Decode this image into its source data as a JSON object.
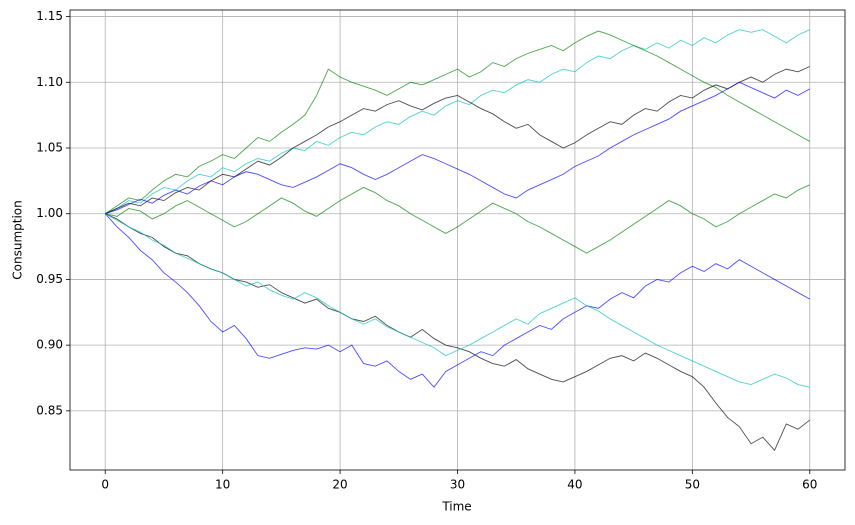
{
  "chart_data": {
    "type": "line",
    "xlabel": "Time",
    "ylabel": "Consumption",
    "xlim": [
      -3,
      63
    ],
    "ylim": [
      0.805,
      1.155
    ],
    "xticks": [
      0,
      10,
      20,
      30,
      40,
      50,
      60
    ],
    "yticks": [
      0.85,
      {
        "value": 0.9,
        "label": "0.90"
      },
      0.95,
      {
        "value": 1.0,
        "label": "1.00"
      },
      1.05,
      {
        "value": 1.1,
        "label": "1.10"
      },
      1.15
    ],
    "grid": true,
    "alpha": 0.7,
    "x": [
      0,
      1,
      2,
      3,
      4,
      5,
      6,
      7,
      8,
      9,
      10,
      11,
      12,
      13,
      14,
      15,
      16,
      17,
      18,
      19,
      20,
      21,
      22,
      23,
      24,
      25,
      26,
      27,
      28,
      29,
      30,
      31,
      32,
      33,
      34,
      35,
      36,
      37,
      38,
      39,
      40,
      41,
      42,
      43,
      44,
      45,
      46,
      47,
      48,
      49,
      50,
      51,
      52,
      53,
      54,
      55,
      56,
      57,
      58,
      59,
      60
    ],
    "series": [
      {
        "color": "#000000",
        "values": [
          1,
          0.996,
          0.99,
          0.985,
          0.982,
          0.975,
          0.97,
          0.968,
          0.962,
          0.958,
          0.955,
          0.95,
          0.948,
          0.944,
          0.946,
          0.94,
          0.936,
          0.932,
          0.935,
          0.928,
          0.925,
          0.92,
          0.918,
          0.922,
          0.915,
          0.91,
          0.906,
          0.912,
          0.905,
          0.9,
          0.898,
          0.895,
          0.89,
          0.886,
          0.884,
          0.889,
          0.882,
          0.878,
          0.874,
          0.872,
          0.876,
          0.88,
          0.885,
          0.89,
          0.892,
          0.888,
          0.894,
          0.89,
          0.885,
          0.88,
          0.876,
          0.868,
          0.856,
          0.845,
          0.838,
          0.825,
          0.83,
          0.82,
          0.84,
          0.836,
          0.843
        ]
      },
      {
        "color": "#00bfbf",
        "values": [
          1,
          1.004,
          1.01,
          1.008,
          1.015,
          1.02,
          1.018,
          1.025,
          1.03,
          1.028,
          1.035,
          1.032,
          1.038,
          1.042,
          1.04,
          1.046,
          1.05,
          1.048,
          1.055,
          1.052,
          1.058,
          1.062,
          1.06,
          1.066,
          1.07,
          1.068,
          1.074,
          1.078,
          1.075,
          1.082,
          1.086,
          1.083,
          1.09,
          1.094,
          1.092,
          1.098,
          1.102,
          1.1,
          1.106,
          1.11,
          1.108,
          1.115,
          1.12,
          1.118,
          1.124,
          1.128,
          1.125,
          1.13,
          1.126,
          1.132,
          1.128,
          1.134,
          1.13,
          1.136,
          1.14,
          1.138,
          1.14,
          1.135,
          1.13,
          1.136,
          1.14
        ]
      },
      {
        "color": "#008000",
        "values": [
          1,
          1.006,
          1.012,
          1.01,
          1.018,
          1.025,
          1.03,
          1.028,
          1.036,
          1.04,
          1.045,
          1.042,
          1.05,
          1.058,
          1.055,
          1.062,
          1.068,
          1.075,
          1.09,
          1.11,
          1.104,
          1.1,
          1.097,
          1.094,
          1.09,
          1.095,
          1.1,
          1.098,
          1.102,
          1.106,
          1.11,
          1.104,
          1.108,
          1.115,
          1.112,
          1.118,
          1.122,
          1.125,
          1.128,
          1.124,
          1.13,
          1.135,
          1.139,
          1.136,
          1.132,
          1.128,
          1.124,
          1.12,
          1.115,
          1.11,
          1.105,
          1.1,
          1.096,
          1.09,
          1.085,
          1.08,
          1.075,
          1.07,
          1.065,
          1.06,
          1.055
        ]
      },
      {
        "color": "#0000ff",
        "values": [
          1,
          0.99,
          0.982,
          0.972,
          0.965,
          0.955,
          0.948,
          0.94,
          0.93,
          0.918,
          0.91,
          0.915,
          0.905,
          0.892,
          0.89,
          0.893,
          0.896,
          0.898,
          0.897,
          0.9,
          0.895,
          0.9,
          0.886,
          0.884,
          0.888,
          0.88,
          0.874,
          0.878,
          0.868,
          0.88,
          0.885,
          0.89,
          0.895,
          0.892,
          0.9,
          0.905,
          0.91,
          0.915,
          0.912,
          0.92,
          0.925,
          0.93,
          0.928,
          0.935,
          0.94,
          0.936,
          0.945,
          0.95,
          0.948,
          0.955,
          0.96,
          0.956,
          0.962,
          0.958,
          0.965,
          0.96,
          0.955,
          0.95,
          0.945,
          0.94,
          0.935
        ]
      },
      {
        "color": "#000000",
        "values": [
          1,
          1.004,
          1.008,
          1.006,
          1.012,
          1.01,
          1.016,
          1.02,
          1.018,
          1.025,
          1.03,
          1.028,
          1.034,
          1.04,
          1.037,
          1.043,
          1.05,
          1.055,
          1.06,
          1.066,
          1.07,
          1.075,
          1.08,
          1.078,
          1.083,
          1.086,
          1.082,
          1.079,
          1.084,
          1.088,
          1.09,
          1.085,
          1.08,
          1.076,
          1.07,
          1.065,
          1.068,
          1.06,
          1.055,
          1.05,
          1.054,
          1.06,
          1.065,
          1.07,
          1.068,
          1.075,
          1.08,
          1.078,
          1.085,
          1.09,
          1.088,
          1.094,
          1.098,
          1.095,
          1.1,
          1.104,
          1.1,
          1.106,
          1.11,
          1.108,
          1.112
        ]
      },
      {
        "color": "#008000",
        "values": [
          1,
          0.998,
          1.004,
          1.002,
          0.996,
          1.0,
          1.006,
          1.01,
          1.005,
          1.0,
          0.995,
          0.99,
          0.994,
          1.0,
          1.006,
          1.012,
          1.008,
          1.002,
          0.998,
          1.004,
          1.01,
          1.015,
          1.02,
          1.016,
          1.01,
          1.006,
          1.0,
          0.995,
          0.99,
          0.985,
          0.99,
          0.996,
          1.002,
          1.008,
          1.004,
          1.0,
          0.994,
          0.99,
          0.985,
          0.98,
          0.975,
          0.97,
          0.975,
          0.98,
          0.986,
          0.992,
          0.998,
          1.004,
          1.01,
          1.006,
          1.0,
          0.996,
          0.99,
          0.994,
          1.0,
          1.005,
          1.01,
          1.015,
          1.012,
          1.018,
          1.022
        ]
      },
      {
        "color": "#00bfbf",
        "values": [
          1,
          0.995,
          0.99,
          0.986,
          0.98,
          0.976,
          0.97,
          0.966,
          0.962,
          0.958,
          0.955,
          0.95,
          0.945,
          0.948,
          0.942,
          0.938,
          0.935,
          0.94,
          0.936,
          0.93,
          0.925,
          0.92,
          0.916,
          0.92,
          0.914,
          0.91,
          0.906,
          0.902,
          0.898,
          0.892,
          0.896,
          0.9,
          0.905,
          0.91,
          0.915,
          0.92,
          0.916,
          0.924,
          0.928,
          0.932,
          0.936,
          0.93,
          0.926,
          0.92,
          0.915,
          0.91,
          0.905,
          0.9,
          0.896,
          0.892,
          0.888,
          0.884,
          0.88,
          0.876,
          0.872,
          0.87,
          0.874,
          0.878,
          0.875,
          0.87,
          0.868
        ]
      },
      {
        "color": "#0000ff",
        "values": [
          1,
          1.003,
          1.007,
          1.011,
          1.008,
          1.014,
          1.018,
          1.015,
          1.021,
          1.025,
          1.022,
          1.028,
          1.032,
          1.03,
          1.026,
          1.022,
          1.02,
          1.024,
          1.028,
          1.033,
          1.038,
          1.035,
          1.03,
          1.026,
          1.03,
          1.035,
          1.04,
          1.045,
          1.042,
          1.038,
          1.034,
          1.03,
          1.025,
          1.02,
          1.015,
          1.012,
          1.018,
          1.022,
          1.026,
          1.03,
          1.036,
          1.04,
          1.044,
          1.05,
          1.055,
          1.06,
          1.064,
          1.068,
          1.072,
          1.078,
          1.082,
          1.086,
          1.09,
          1.095,
          1.1,
          1.096,
          1.092,
          1.088,
          1.094,
          1.09,
          1.095
        ]
      }
    ]
  }
}
